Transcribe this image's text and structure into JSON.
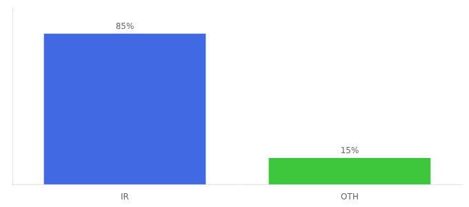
{
  "chart_data": {
    "type": "bar",
    "categories": [
      "IR",
      "OTH"
    ],
    "values": [
      85,
      15
    ],
    "value_labels": [
      "85%",
      "15%"
    ],
    "colors": [
      "#4169e1",
      "#3dc73d"
    ],
    "ylim": [
      0,
      100
    ],
    "grid": false,
    "data_labels": true,
    "tick_labels": "x"
  }
}
